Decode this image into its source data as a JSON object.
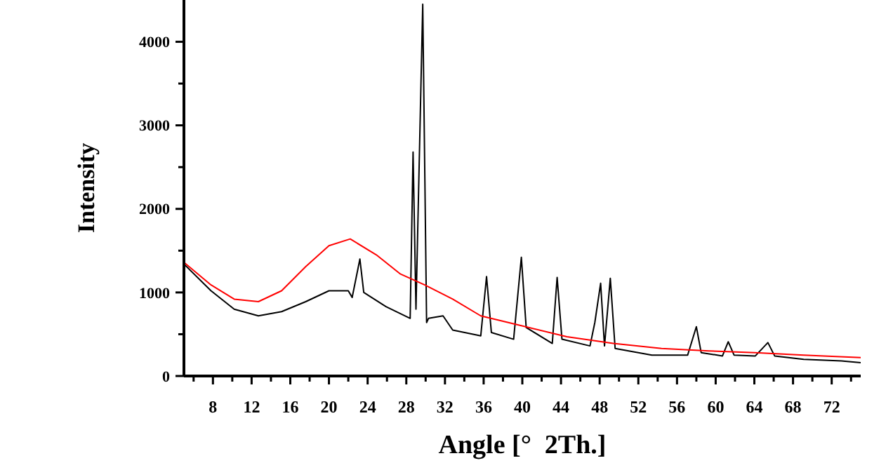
{
  "chart_data": {
    "type": "line",
    "xlabel": "Angle [°  2Th.]",
    "ylabel": "Intensity",
    "xlim": [
      5,
      75
    ],
    "xticks": [
      {
        "value": 6,
        "label": null
      },
      8,
      {
        "value": 10,
        "label": null
      },
      12,
      {
        "value": 14,
        "label": null
      },
      16,
      {
        "value": 18,
        "label": null
      },
      20,
      {
        "value": 22,
        "label": null
      },
      24,
      {
        "value": 26,
        "label": null
      },
      28,
      {
        "value": 30,
        "label": null
      },
      32,
      {
        "value": 34,
        "label": null
      },
      36,
      {
        "value": 38,
        "label": null
      },
      40,
      {
        "value": 42,
        "label": null
      },
      44,
      {
        "value": 46,
        "label": null
      },
      48,
      {
        "value": 50,
        "label": null
      },
      52,
      {
        "value": 54,
        "label": null
      },
      56,
      {
        "value": 58,
        "label": null
      },
      60,
      {
        "value": 62,
        "label": null
      },
      64,
      {
        "value": 66,
        "label": null
      },
      68,
      {
        "value": 70,
        "label": null
      },
      72,
      {
        "value": 74,
        "label": null
      }
    ],
    "ylim": [
      0,
      4500
    ],
    "yticks": [
      0,
      {
        "value": 500,
        "label": null
      },
      1000,
      {
        "value": 1500,
        "label": null
      },
      2000,
      {
        "value": 2500,
        "label": null
      },
      3000,
      {
        "value": 3500,
        "label": null
      },
      4000
    ],
    "grid": false,
    "marker": "none",
    "line_style": "solid",
    "series": [
      {
        "color": "#000000",
        "x": [
          5,
          7.8,
          10.2,
          12.7,
          15.1,
          17.6,
          20,
          22,
          22.4,
          23.2,
          23.6,
          25.9,
          28.4,
          28.7,
          29,
          29.7,
          30.1,
          30.3,
          31.8,
          32.8,
          35.7,
          36.3,
          36.8,
          39.1,
          39.9,
          40.4,
          43.1,
          43.6,
          44.1,
          47,
          47.5,
          48.1,
          48.5,
          49.1,
          49.6,
          53.4,
          57.1,
          58,
          58.5,
          60.7,
          61.3,
          61.9,
          64.1,
          65.4,
          66.1,
          69.1,
          73,
          75
        ],
        "values": [
          1340,
          1020,
          800,
          720,
          770,
          890,
          1020,
          1020,
          940,
          1400,
          1000,
          830,
          690,
          2680,
          800,
          4450,
          640,
          690,
          720,
          550,
          480,
          1190,
          520,
          440,
          1420,
          580,
          390,
          1180,
          440,
          360,
          640,
          1110,
          360,
          1170,
          330,
          250,
          250,
          590,
          280,
          240,
          410,
          250,
          240,
          400,
          240,
          200,
          180,
          160
        ]
      },
      {
        "color": "#ff0000",
        "x": [
          5,
          7.8,
          10.2,
          12.7,
          15.1,
          17.6,
          20,
          22.2,
          24.9,
          27.4,
          29.9,
          32.8,
          35.7,
          39.6,
          44.6,
          49.4,
          54.4,
          59.3,
          64.1,
          69.1,
          75
        ],
        "values": [
          1360,
          1090,
          920,
          890,
          1020,
          1310,
          1560,
          1640,
          1450,
          1220,
          1090,
          920,
          720,
          610,
          470,
          390,
          330,
          300,
          280,
          250,
          220
        ]
      }
    ]
  }
}
